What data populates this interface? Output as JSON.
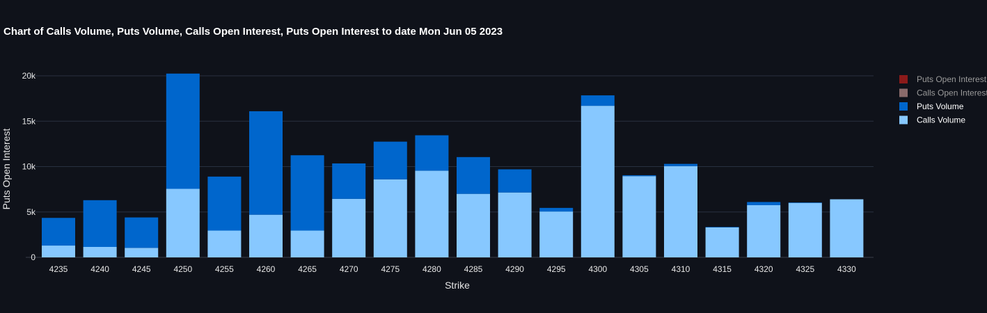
{
  "chart_data": {
    "type": "bar",
    "stacked": true,
    "title": "Chart of Calls Volume, Puts Volume, Calls Open Interest, Puts Open Interest to date Mon Jun 05 2023",
    "xlabel": "Strike",
    "ylabel": "Puts Open Interest",
    "ylim": [
      0,
      21000
    ],
    "yticks": [
      {
        "value": 0,
        "label": "0"
      },
      {
        "value": 5000,
        "label": "5k"
      },
      {
        "value": 10000,
        "label": "10k"
      },
      {
        "value": 15000,
        "label": "15k"
      },
      {
        "value": 20000,
        "label": "20k"
      }
    ],
    "grid": true,
    "legend_position": "right",
    "categories": [
      "4235",
      "4240",
      "4245",
      "4250",
      "4255",
      "4260",
      "4265",
      "4270",
      "4275",
      "4280",
      "4285",
      "4290",
      "4295",
      "4300",
      "4305",
      "4310",
      "4315",
      "4320",
      "4325",
      "4330"
    ],
    "series": [
      {
        "name": "Calls Volume",
        "color": "#87c8ff",
        "values": [
          1300,
          1150,
          1050,
          7550,
          2950,
          4700,
          2950,
          6450,
          8600,
          9550,
          7000,
          7150,
          5050,
          16700,
          8950,
          10050,
          3300,
          5750,
          6000,
          6400
        ]
      },
      {
        "name": "Puts Volume",
        "color": "#0066cc",
        "values": [
          3050,
          5150,
          3350,
          12700,
          5950,
          11400,
          8300,
          3900,
          4150,
          3900,
          4050,
          2550,
          400,
          1150,
          100,
          250,
          50,
          350,
          50,
          0
        ]
      },
      {
        "name": "Calls Open Interest",
        "color": "#8a6b6b",
        "values": [
          0,
          0,
          0,
          0,
          0,
          0,
          0,
          0,
          0,
          0,
          0,
          0,
          0,
          0,
          0,
          0,
          0,
          0,
          0,
          0
        ]
      },
      {
        "name": "Puts Open Interest",
        "color": "#8b1a1a",
        "values": [
          0,
          0,
          0,
          0,
          0,
          0,
          0,
          0,
          0,
          0,
          0,
          0,
          0,
          0,
          0,
          0,
          0,
          0,
          0,
          0
        ]
      }
    ],
    "legend": [
      {
        "name": "Puts Open Interest",
        "color": "#8b1a1a",
        "dimmed": true
      },
      {
        "name": "Calls Open Interest",
        "color": "#8a6b6b",
        "dimmed": true
      },
      {
        "name": "Puts Volume",
        "color": "#0066cc",
        "dimmed": false
      },
      {
        "name": "Calls Volume",
        "color": "#87c8ff",
        "dimmed": false
      }
    ]
  }
}
